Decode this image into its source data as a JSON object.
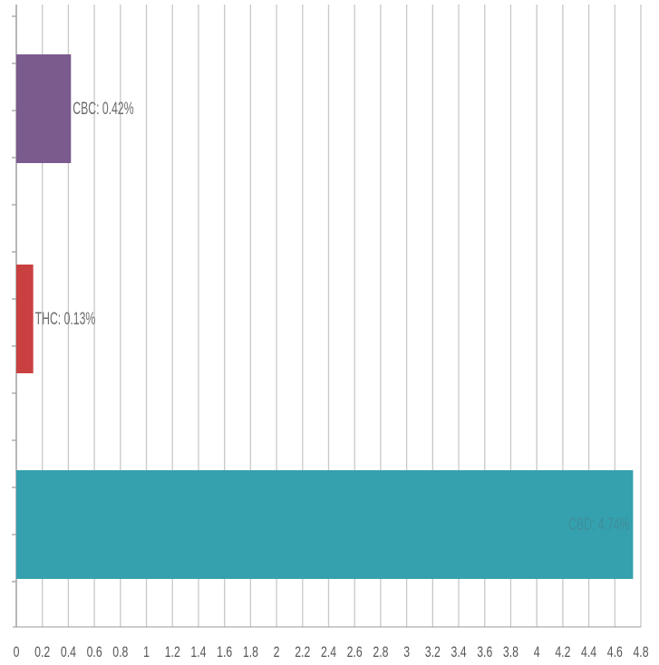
{
  "chart_data": {
    "type": "bar",
    "orientation": "horizontal",
    "categories": [
      "CBC",
      "THC",
      "CBD"
    ],
    "values": [
      0.42,
      0.13,
      4.74
    ],
    "data_labels": [
      "CBC: 0.42%",
      "THC: 0.13%",
      "CBD: 4.74%"
    ],
    "colors": [
      "#7b5a8e",
      "#c94040",
      "#35a0ae"
    ],
    "label_colors": [
      "#6b6b6b",
      "#6b6b6b",
      "#3d8f99"
    ],
    "xlim": [
      0,
      4.8
    ],
    "xticks": [
      "0",
      "0.2",
      "0.4",
      "0.6",
      "0.8",
      "1",
      "1.2",
      "1.4",
      "1.6",
      "1.8",
      "2",
      "2.2",
      "2.4",
      "2.6",
      "2.8",
      "3",
      "3.2",
      "3.4",
      "3.6",
      "3.8",
      "4",
      "4.2",
      "4.4",
      "4.6",
      "4.8"
    ],
    "grid": "vertical",
    "title": "",
    "xlabel": "",
    "ylabel": ""
  }
}
